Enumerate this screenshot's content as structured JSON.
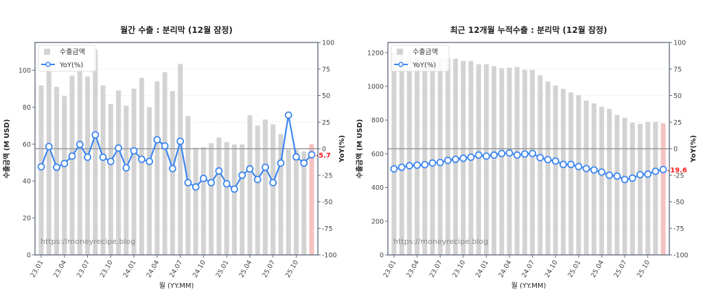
{
  "months": [
    "23.01",
    "23.02",
    "23.03",
    "23.04",
    "23.05",
    "23.06",
    "23.07",
    "23.08",
    "23.09",
    "23.10",
    "23.11",
    "23.12",
    "24.01",
    "24.02",
    "24.03",
    "24.04",
    "24.05",
    "24.06",
    "24.07",
    "24.08",
    "24.09",
    "24.10",
    "24.11",
    "24.12",
    "25.01",
    "25.02",
    "25.03",
    "25.04",
    "25.05",
    "25.06",
    "25.07",
    "25.08",
    "25.09",
    "25.10",
    "25.11",
    "25.12"
  ],
  "colors": {
    "bar": "#d3d3d3",
    "bar_highlight": "#f5c2c2",
    "line": "#3d85f0",
    "zero_line": "#9a9a9a",
    "axis": "#5a6478",
    "annotation": "#ff1a1a",
    "grid": "#eeeeee"
  },
  "chart_data": [
    {
      "type": "bar+line",
      "title": "월간 수출 : 분리막 (12월 잠정)",
      "xlabel": "월 (YY.MM)",
      "ylabel": "수출금액 (M USD)",
      "ylabel_right": "YoY(%)",
      "ylim": [
        0,
        115
      ],
      "ylim_right": [
        -100,
        100
      ],
      "yticks": [
        0,
        20,
        40,
        60,
        80,
        100
      ],
      "yticks_right": [
        -100,
        -75,
        -50,
        -25,
        0,
        25,
        50,
        75,
        100
      ],
      "xticks": [
        "23.01",
        "23.04",
        "23.07",
        "23.10",
        "24.01",
        "24.04",
        "24.07",
        "24.10",
        "25.01",
        "25.04",
        "25.07",
        "25.10"
      ],
      "legend": [
        "수출금액",
        "YoY(%)"
      ],
      "legend_position": "upper left",
      "watermark": "https://moneyrecipe.blog",
      "annotation": "-5.7",
      "series": [
        {
          "name": "수출금액",
          "axis": "left",
          "type": "bar",
          "values": [
            91.7,
            103,
            91,
            86,
            97,
            101,
            96.6,
            111,
            91.7,
            81.6,
            89,
            80.8,
            90,
            95.9,
            80,
            94,
            98.9,
            88.7,
            103.4,
            75.2,
            58,
            58.3,
            60.5,
            63.5,
            61,
            59.8,
            59.8,
            75.6,
            70,
            73.3,
            70.7,
            65.4,
            57,
            57,
            56,
            60
          ]
        },
        {
          "name": "YoY(%)",
          "axis": "right",
          "type": "line",
          "values": [
            -17,
            2,
            -17.5,
            -14,
            -7,
            4,
            -8,
            13,
            -8,
            -12,
            0.6,
            -18,
            -2,
            -10,
            -12,
            8.4,
            2.6,
            -18.7,
            7,
            -32,
            -36,
            -28,
            -32,
            -21,
            -33,
            -38,
            -25,
            -19,
            -29,
            -17.5,
            -32,
            -13.5,
            31.6,
            -7.7,
            -13.5,
            -5.7
          ]
        }
      ]
    },
    {
      "type": "bar+line",
      "title": "최근 12개월 누적수출 : 분리막 (12월 잠정)",
      "xlabel": "월 (YY.MM)",
      "ylabel": "수출금액 (M USD)",
      "ylabel_right": "YoY(%)",
      "ylim": [
        0,
        1260
      ],
      "ylim_right": [
        -100,
        100
      ],
      "yticks": [
        0,
        200,
        400,
        600,
        800,
        1000,
        1200
      ],
      "yticks_right": [
        -100,
        -75,
        -50,
        -25,
        0,
        25,
        50,
        75,
        100
      ],
      "xticks": [
        "23.01",
        "23.04",
        "23.07",
        "23.10",
        "24.01",
        "24.04",
        "24.07",
        "24.10",
        "25.01",
        "25.04",
        "25.07",
        "25.10"
      ],
      "legend": [
        "수출금액",
        "YoY(%)"
      ],
      "legend_position": "upper left",
      "watermark": "https://moneyrecipe.blog",
      "annotation": "-19.6",
      "series": [
        {
          "name": "수출금액",
          "axis": "left",
          "type": "bar",
          "values": [
            1196,
            1184,
            1176,
            1172,
            1168,
            1172,
            1168,
            1168,
            1164,
            1151,
            1151,
            1131,
            1131,
            1119,
            1107,
            1111,
            1115,
            1098,
            1098,
            1066,
            1029,
            1005,
            985,
            964,
            948,
            915,
            899,
            879,
            867,
            830,
            814,
            785,
            777,
            789,
            789,
            781
          ]
        },
        {
          "name": "YoY(%)",
          "axis": "right",
          "type": "line",
          "values": [
            -19,
            -17.5,
            -16,
            -15.5,
            -15,
            -13.5,
            -13,
            -11,
            -10,
            -9,
            -8,
            -6,
            -7,
            -6,
            -4.5,
            -4,
            -6,
            -5,
            -4.5,
            -8.4,
            -10.3,
            -11.6,
            -14.8,
            -14.8,
            -16.8,
            -18.7,
            -20,
            -22,
            -25,
            -25.8,
            -29,
            -27.7,
            -24.5,
            -23.9,
            -21.3,
            -19.6
          ]
        }
      ]
    }
  ]
}
